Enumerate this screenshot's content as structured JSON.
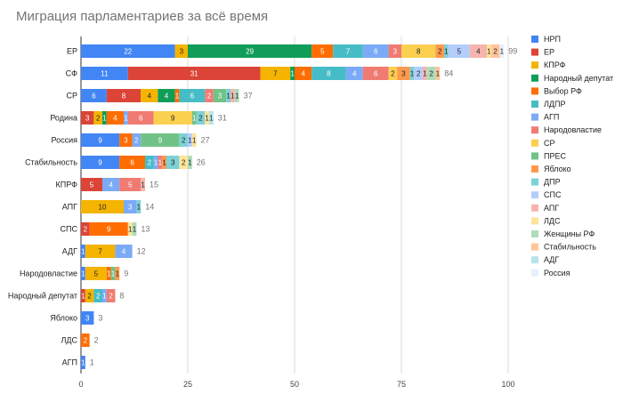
{
  "chart_data": {
    "type": "bar",
    "orientation": "horizontal",
    "stacked": true,
    "title": "Миграция парламентариев за всё время",
    "xlabel": "",
    "ylabel": "",
    "xlim": [
      0,
      100
    ],
    "xticks": [
      "0",
      "25",
      "50",
      "75",
      "100"
    ],
    "grid": true,
    "legend_position": "right",
    "categories": [
      "ЕР",
      "СФ",
      "СР",
      "Родина",
      "Россия",
      "Стабильность",
      "КПРФ",
      "АПГ",
      "СПС",
      "АДГ",
      "Народовластие",
      "Народный депутат",
      "Яблоко",
      "ЛДС",
      "АГП"
    ],
    "totals": [
      "99",
      "84",
      "37",
      "31",
      "27",
      "26",
      "15",
      "14",
      "13",
      "12",
      "9",
      "8",
      "3",
      "2",
      "1"
    ],
    "series": [
      {
        "name": "НРП",
        "color": "#4285f4",
        "values": [
          22,
          11,
          6,
          0,
          9,
          9,
          0,
          0,
          0,
          1,
          1,
          0,
          3,
          0,
          1
        ]
      },
      {
        "name": "ЕР",
        "color": "#db4437",
        "values": [
          0,
          31,
          8,
          3,
          0,
          0,
          5,
          0,
          2,
          0,
          0,
          1,
          0,
          0,
          0
        ]
      },
      {
        "name": "КПРФ",
        "color": "#f4b400",
        "values": [
          3,
          7,
          4,
          2,
          0,
          0,
          0,
          10,
          0,
          7,
          5,
          2,
          0,
          0,
          0
        ]
      },
      {
        "name": "Народный депутат",
        "color": "#0f9d58",
        "values": [
          29,
          1,
          4,
          1,
          0,
          0,
          0,
          0,
          0,
          0,
          0,
          0,
          0,
          0,
          0
        ]
      },
      {
        "name": "Выбор РФ",
        "color": "#ff6d01",
        "values": [
          5,
          4,
          1,
          4,
          3,
          6,
          0,
          0,
          9,
          0,
          1,
          0,
          0,
          2,
          0
        ]
      },
      {
        "name": "ЛДПР",
        "color": "#46bdc6",
        "values": [
          7,
          8,
          6,
          0,
          0,
          2,
          0,
          0,
          0,
          0,
          0,
          2,
          0,
          0,
          0
        ]
      },
      {
        "name": "АГП",
        "color": "#7baaf7",
        "values": [
          6,
          4,
          0,
          1,
          2,
          1,
          4,
          3,
          0,
          4,
          0,
          1,
          0,
          0,
          0
        ]
      },
      {
        "name": "Народовластие",
        "color": "#f07b72",
        "values": [
          3,
          6,
          2,
          6,
          0,
          1,
          5,
          0,
          0,
          0,
          0,
          2,
          0,
          0,
          0
        ]
      },
      {
        "name": "СР",
        "color": "#fcd04f",
        "values": [
          8,
          2,
          0,
          9,
          0,
          0,
          0,
          0,
          0,
          0,
          0,
          0,
          0,
          0,
          0
        ]
      },
      {
        "name": "ПРЕС",
        "color": "#71c287",
        "values": [
          0,
          0,
          3,
          1,
          9,
          0,
          0,
          0,
          0,
          0,
          1,
          0,
          0,
          0,
          0
        ]
      },
      {
        "name": "Яблоко",
        "color": "#ff994d",
        "values": [
          2,
          3,
          0,
          0,
          0,
          1,
          0,
          0,
          0,
          0,
          1,
          0,
          0,
          0,
          0
        ]
      },
      {
        "name": "ДПР",
        "color": "#7ed1d7",
        "values": [
          1,
          1,
          1,
          2,
          2,
          3,
          0,
          1,
          0,
          0,
          0,
          0,
          0,
          0,
          0
        ]
      },
      {
        "name": "СПС",
        "color": "#b3cefb",
        "values": [
          5,
          2,
          0,
          0,
          1,
          0,
          0,
          0,
          0,
          0,
          0,
          0,
          0,
          0,
          0
        ]
      },
      {
        "name": "АПГ",
        "color": "#f7b4ae",
        "values": [
          4,
          1,
          1,
          0,
          0,
          0,
          1,
          0,
          0,
          0,
          0,
          0,
          0,
          0,
          0
        ]
      },
      {
        "name": "ЛДС",
        "color": "#fde49b",
        "values": [
          1,
          0,
          0,
          1,
          1,
          2,
          0,
          0,
          1,
          0,
          0,
          0,
          0,
          0,
          0
        ]
      },
      {
        "name": "Женщины РФ",
        "color": "#aedcba",
        "values": [
          0,
          2,
          1,
          0,
          0,
          1,
          0,
          0,
          1,
          0,
          0,
          0,
          0,
          0,
          0
        ]
      },
      {
        "name": "Стабильность",
        "color": "#ffc599",
        "values": [
          2,
          1,
          0,
          0,
          0,
          0,
          0,
          0,
          0,
          0,
          0,
          0,
          0,
          0,
          0
        ]
      },
      {
        "name": "АДГ",
        "color": "#b5e5e8",
        "values": [
          0,
          0,
          0,
          1,
          0,
          0,
          0,
          0,
          0,
          0,
          0,
          0,
          0,
          0,
          0
        ]
      },
      {
        "name": "Россия",
        "color": "#e8f0fe",
        "values": [
          1,
          0,
          0,
          0,
          0,
          0,
          0,
          0,
          0,
          0,
          0,
          0,
          0,
          0,
          0
        ]
      }
    ]
  }
}
